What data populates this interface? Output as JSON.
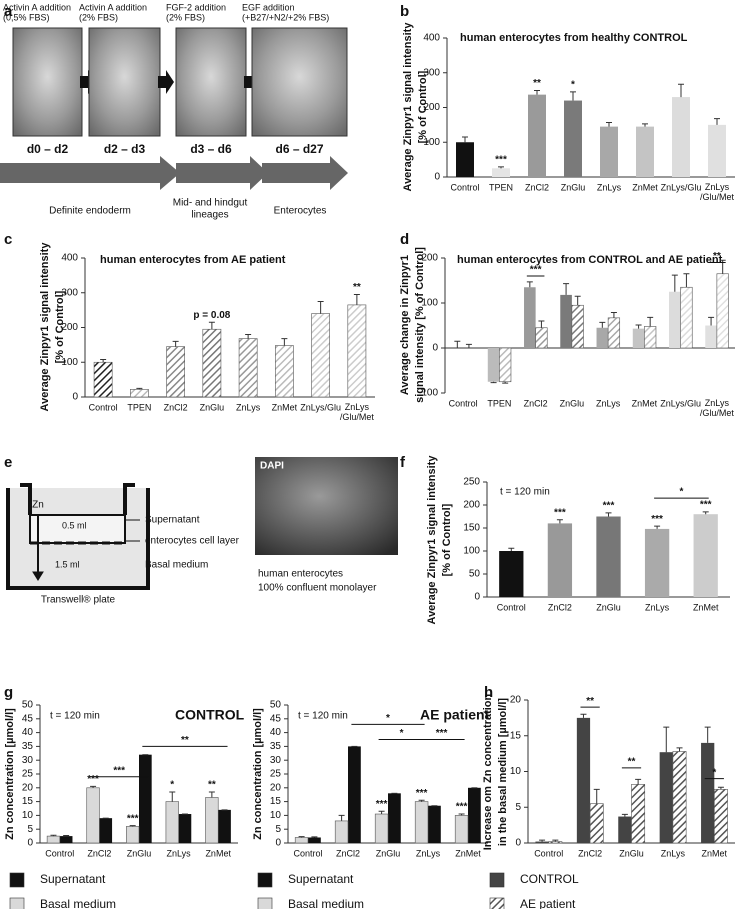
{
  "panel_labels": [
    "a",
    "b",
    "c",
    "d",
    "e",
    "f",
    "g",
    "h"
  ],
  "panel_a": {
    "steps": [
      {
        "label": [
          "Activin A addition",
          "(0,5% FBS)"
        ],
        "days": "d0 – d2"
      },
      {
        "label": [
          "Activin A addition",
          "(2% FBS)"
        ],
        "days": "d2 – d3"
      },
      {
        "label": [
          "FGF-2 addition",
          "(2% FBS)"
        ],
        "days": "d3 – d6"
      },
      {
        "label": [
          "EGF addition",
          "(+B27/+N2/+2% FBS)"
        ],
        "days": "d6 – d27"
      }
    ],
    "stages": [
      [
        "Definite endoderm"
      ],
      [
        "Mid- and hindgut",
        "lineages"
      ],
      [
        "Enterocytes"
      ]
    ]
  },
  "panel_e": {
    "zn": "Zn",
    "top_volume": "0.5 ml",
    "bottom_volume": "1.5 ml",
    "supernatant": "Supernatant",
    "cell_layer": "enterocytes cell layer",
    "basal": "Basal medium",
    "plate": "Transwell® plate",
    "stain": "DAPI",
    "caption": [
      "human enterocytes",
      "100% confluent monolayer"
    ]
  },
  "chart_data": [
    {
      "type": "bar",
      "title": "human enterocytes from healthy CONTROL",
      "ylabel": [
        "Average Zinpyr1 signal intensity",
        "[% of Control]"
      ],
      "categories": [
        "Control",
        "TPEN",
        "ZnCl2",
        "ZnGlu",
        "ZnLys",
        "ZnMet",
        "ZnLys/Glu",
        "ZnLys /Glu/Met"
      ],
      "values": [
        100,
        25,
        237,
        220,
        145,
        145,
        230,
        150
      ],
      "errors": [
        15,
        4,
        12,
        25,
        12,
        8,
        37,
        18
      ],
      "colors": [
        "#111111",
        "#e4e4e4",
        "#9a9a9a",
        "#7a7a7a",
        "#a8a8a8",
        "#c4c4c4",
        "#dcdcdc",
        "#e0e0e0"
      ],
      "ylim": [
        0,
        400
      ],
      "yticks": [
        0,
        100,
        200,
        300,
        400
      ],
      "annotations": [
        "***",
        "**",
        "*"
      ]
    },
    {
      "type": "bar",
      "title": "human enterocytes from AE patient",
      "ylabel": [
        "Average Zinpyr1 signal intensity",
        "[% of Control]"
      ],
      "categories": [
        "Control",
        "TPEN",
        "ZnCl2",
        "ZnGlu",
        "ZnLys",
        "ZnMet",
        "ZnLys/Glu",
        "ZnLys /Glu/Met"
      ],
      "values": [
        100,
        22,
        145,
        195,
        168,
        148,
        240,
        265
      ],
      "errors": [
        8,
        3,
        15,
        20,
        12,
        20,
        35,
        30
      ],
      "hatch": true,
      "colors": [
        "#222222",
        "#bbbbbb",
        "#888888",
        "#777777",
        "#999999",
        "#bbbbbb",
        "#cccccc",
        "#cccccc"
      ],
      "ylim": [
        0,
        400
      ],
      "yticks": [
        0,
        100,
        200,
        300,
        400
      ],
      "annotations": [
        "p = 0.08",
        "**"
      ]
    },
    {
      "type": "bar",
      "title": "human enterocytes from CONTROL and AE patient",
      "ylabel": [
        "Average change in Zinpyr1",
        "signal intensity [% of Control]"
      ],
      "categories": [
        "Control",
        "TPEN",
        "ZnCl2",
        "ZnGlu",
        "ZnLys",
        "ZnMet",
        "ZnLys/Glu",
        "ZnLys /Glu/Met"
      ],
      "colors": [
        "#111111",
        "#bbbbbb",
        "#9a9a9a",
        "#7a7a7a",
        "#a8a8a8",
        "#c4c4c4",
        "#dcdcdc",
        "#e0e0e0"
      ],
      "series": [
        {
          "values": [
            0,
            -75,
            135,
            118,
            45,
            43,
            125,
            50
          ],
          "errors": [
            15,
            2,
            12,
            25,
            12,
            8,
            37,
            18
          ]
        },
        {
          "values": [
            0,
            -75,
            45,
            95,
            67,
            48,
            135,
            165
          ],
          "errors": [
            8,
            3,
            15,
            20,
            12,
            20,
            30,
            30
          ],
          "hatch": true
        }
      ],
      "ylim": [
        -100,
        200
      ],
      "yticks": [
        -100,
        0,
        100,
        200
      ],
      "brackets": [
        "***",
        "**"
      ]
    },
    {
      "type": "bar",
      "subtitle": "t = 120 min",
      "ylabel": [
        "Average Zinpyr1 signal intensity",
        "[% of Control]"
      ],
      "categories": [
        "Control",
        "ZnCl2",
        "ZnGlu",
        "ZnLys",
        "ZnMet"
      ],
      "values": [
        100,
        160,
        175,
        148,
        180
      ],
      "errors": [
        6,
        8,
        8,
        6,
        5
      ],
      "colors": [
        "#111111",
        "#999999",
        "#777777",
        "#aaaaaa",
        "#cccccc"
      ],
      "ylim": [
        0,
        250
      ],
      "yticks": [
        0,
        50,
        100,
        150,
        200,
        250
      ],
      "annotations": [
        "***",
        "***",
        "***",
        "***"
      ],
      "brackets": [
        "*"
      ]
    },
    {
      "type": "bar",
      "subtitle": "t = 120 min",
      "title": "CONTROL",
      "ylabel": [
        "Zn concentration [µmol/l]"
      ],
      "categories": [
        "Control",
        "ZnCl2",
        "ZnGlu",
        "ZnLys",
        "ZnMet"
      ],
      "series": [
        {
          "name": "Supernatant",
          "color": "#111111",
          "values": [
            2.5,
            9,
            32,
            10.5,
            12
          ],
          "errors": [
            0.2,
            0,
            0,
            0,
            0
          ]
        },
        {
          "name": "Basal medium",
          "color": "#d9d9d9",
          "values": [
            2.5,
            20,
            6,
            15,
            16.5
          ],
          "errors": [
            0.3,
            0.5,
            0.3,
            3.5,
            2
          ]
        }
      ],
      "ylim": [
        0,
        50
      ],
      "yticks": [
        0,
        5,
        10,
        15,
        20,
        25,
        30,
        35,
        40,
        45,
        50
      ],
      "annotations": [
        "***",
        "***",
        "*",
        "**"
      ],
      "brackets": [
        "***",
        "**"
      ],
      "legend": true
    },
    {
      "type": "bar",
      "subtitle": "t = 120 min",
      "title": "AE patient",
      "ylabel": [
        "Zn concentration [µmol/l]"
      ],
      "categories": [
        "Control",
        "ZnCl2",
        "ZnGlu",
        "ZnLys",
        "ZnMet"
      ],
      "series": [
        {
          "name": "Supernatant",
          "color": "#111111",
          "values": [
            2,
            35,
            18,
            13.5,
            20
          ],
          "errors": [
            0.2,
            0,
            0,
            0,
            0
          ]
        },
        {
          "name": "Basal medium",
          "color": "#d9d9d9",
          "values": [
            2,
            8,
            10.5,
            15,
            10
          ],
          "errors": [
            0.3,
            2,
            1,
            0.5,
            0.5
          ]
        }
      ],
      "ylim": [
        0,
        50
      ],
      "yticks": [
        0,
        5,
        10,
        15,
        20,
        25,
        30,
        35,
        40,
        45,
        50
      ],
      "annotations": [
        "***",
        "***",
        "***"
      ],
      "brackets": [
        "*",
        "*",
        "***"
      ],
      "legend": true
    },
    {
      "type": "bar",
      "ylabel": [
        "Increase om Zn concentration",
        "in the basal medium [µmol/l]"
      ],
      "categories": [
        "Control",
        "ZnCl2",
        "ZnGlu",
        "ZnLys",
        "ZnMet"
      ],
      "series": [
        {
          "name": "CONTROL",
          "color": "#444444",
          "values": [
            0.2,
            17.5,
            3.7,
            12.7,
            14
          ],
          "errors": [
            0.2,
            0.5,
            0.3,
            3.5,
            2.2
          ]
        },
        {
          "name": "AE patient",
          "color": "#555555",
          "hatch": true,
          "values": [
            0.2,
            5.5,
            8.2,
            12.8,
            7.5
          ],
          "errors": [
            0.2,
            2,
            0.7,
            0.5,
            0.3
          ]
        }
      ],
      "ylim": [
        0,
        20
      ],
      "yticks": [
        0,
        5,
        10,
        15,
        20
      ],
      "brackets": [
        "**",
        "**",
        "*"
      ],
      "legend": true
    }
  ]
}
